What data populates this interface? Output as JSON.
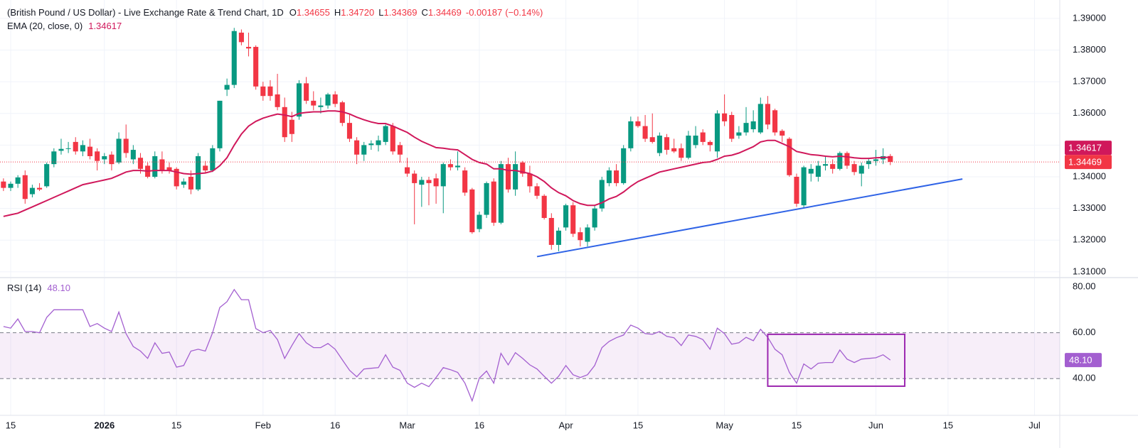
{
  "chart_data": {
    "type": "candlestick",
    "title": "(British Pound / US Dollar) - Live Exchange Rate & Trend Chart, 1D",
    "ohlc_legend": [
      {
        "label": "O",
        "value": "1.34655"
      },
      {
        "label": "H",
        "value": "1.34720"
      },
      {
        "label": "L",
        "value": "1.34369"
      },
      {
        "label": "C",
        "value": "1.34469"
      }
    ],
    "change": "-0.00187",
    "change_pct": "(−0.14%)",
    "up_color": "#089981",
    "down_color": "#f23645",
    "grid": true,
    "ylim": [
      1.3084,
      1.3958
    ],
    "yticks": [
      {
        "value": 1.39,
        "label": "1.39000"
      },
      {
        "value": 1.38,
        "label": "1.38000"
      },
      {
        "value": 1.37,
        "label": "1.37000"
      },
      {
        "value": 1.36,
        "label": "1.36000"
      },
      {
        "value": 1.35,
        "label": "1.35000"
      },
      {
        "value": 1.34,
        "label": "1.34000"
      },
      {
        "value": 1.33,
        "label": "1.33000"
      },
      {
        "value": 1.32,
        "label": "1.32000"
      },
      {
        "value": 1.31,
        "label": "1.31000"
      }
    ],
    "xlim": [
      -0.48,
      146.5
    ],
    "xticks": [
      {
        "value": 1,
        "label": "15"
      },
      {
        "value": 14,
        "label": "2026"
      },
      {
        "value": 24,
        "label": "15"
      },
      {
        "value": 36,
        "label": "Feb"
      },
      {
        "value": 46,
        "label": "16"
      },
      {
        "value": 56,
        "label": "Mar"
      },
      {
        "value": 66,
        "label": "16"
      },
      {
        "value": 78,
        "label": "Apr"
      },
      {
        "value": 88,
        "label": "15"
      },
      {
        "value": 100,
        "label": "May"
      },
      {
        "value": 110,
        "label": "15"
      },
      {
        "value": 121,
        "label": "Jun"
      },
      {
        "value": 131,
        "label": "15"
      },
      {
        "value": 143,
        "label": "Jul"
      }
    ],
    "ohlc": [
      [
        1.3385,
        1.3395,
        1.3355,
        1.3365
      ],
      [
        1.3365,
        1.3385,
        1.3355,
        1.3378
      ],
      [
        1.3378,
        1.3405,
        1.3365,
        1.3398
      ],
      [
        1.3405,
        1.342,
        1.3315,
        1.333
      ],
      [
        1.3345,
        1.3375,
        1.3335,
        1.3365
      ],
      [
        1.3365,
        1.338,
        1.3355,
        1.336
      ],
      [
        1.337,
        1.3445,
        1.3365,
        1.344
      ],
      [
        1.344,
        1.349,
        1.343,
        1.348
      ],
      [
        1.3482,
        1.352,
        1.347,
        1.3488
      ],
      [
        1.3488,
        1.351,
        1.3475,
        1.349
      ],
      [
        1.351,
        1.3525,
        1.347,
        1.348
      ],
      [
        1.348,
        1.3515,
        1.3465,
        1.35
      ],
      [
        1.3495,
        1.352,
        1.3455,
        1.3465
      ],
      [
        1.348,
        1.349,
        1.342,
        1.345
      ],
      [
        1.3455,
        1.3475,
        1.344,
        1.3465
      ],
      [
        1.347,
        1.348,
        1.342,
        1.344
      ],
      [
        1.3445,
        1.354,
        1.344,
        1.352
      ],
      [
        1.352,
        1.3565,
        1.346,
        1.3475
      ],
      [
        1.3455,
        1.35,
        1.344,
        1.3485
      ],
      [
        1.346,
        1.3475,
        1.341,
        1.3425
      ],
      [
        1.3435,
        1.3445,
        1.3395,
        1.34
      ],
      [
        1.34,
        1.348,
        1.3395,
        1.3465
      ],
      [
        1.3455,
        1.348,
        1.341,
        1.342
      ],
      [
        1.343,
        1.3445,
        1.341,
        1.342
      ],
      [
        1.3425,
        1.343,
        1.336,
        1.337
      ],
      [
        1.3375,
        1.3395,
        1.3365,
        1.3385
      ],
      [
        1.34,
        1.342,
        1.3345,
        1.336
      ],
      [
        1.336,
        1.3475,
        1.3355,
        1.3465
      ],
      [
        1.3435,
        1.345,
        1.341,
        1.342
      ],
      [
        1.342,
        1.35,
        1.3415,
        1.349
      ],
      [
        1.349,
        1.364,
        1.348,
        1.364
      ],
      [
        1.3675,
        1.371,
        1.3655,
        1.369
      ],
      [
        1.369,
        1.387,
        1.368,
        1.386
      ],
      [
        1.3855,
        1.3865,
        1.3815,
        1.3825
      ],
      [
        1.381,
        1.3855,
        1.378,
        1.3805
      ],
      [
        1.381,
        1.3815,
        1.3675,
        1.3685
      ],
      [
        1.3685,
        1.37,
        1.364,
        1.3655
      ],
      [
        1.3685,
        1.3705,
        1.364,
        1.3655
      ],
      [
        1.366,
        1.3725,
        1.361,
        1.362
      ],
      [
        1.362,
        1.365,
        1.351,
        1.3525
      ],
      [
        1.358,
        1.3605,
        1.351,
        1.3535
      ],
      [
        1.359,
        1.3705,
        1.358,
        1.3695
      ],
      [
        1.3695,
        1.3715,
        1.363,
        1.364
      ],
      [
        1.364,
        1.367,
        1.361,
        1.3625
      ],
      [
        1.362,
        1.365,
        1.36,
        1.3625
      ],
      [
        1.3625,
        1.3665,
        1.3615,
        1.366
      ],
      [
        1.366,
        1.367,
        1.362,
        1.363
      ],
      [
        1.3635,
        1.364,
        1.356,
        1.357
      ],
      [
        1.357,
        1.36,
        1.351,
        1.352
      ],
      [
        1.3515,
        1.3525,
        1.344,
        1.347
      ],
      [
        1.347,
        1.351,
        1.345,
        1.35
      ],
      [
        1.35,
        1.3515,
        1.3485,
        1.3505
      ],
      [
        1.35,
        1.353,
        1.348,
        1.3515
      ],
      [
        1.351,
        1.3565,
        1.35,
        1.356
      ],
      [
        1.356,
        1.357,
        1.347,
        1.348
      ],
      [
        1.35,
        1.351,
        1.3445,
        1.347
      ],
      [
        1.343,
        1.346,
        1.34,
        1.341
      ],
      [
        1.341,
        1.342,
        1.325,
        1.338
      ],
      [
        1.3375,
        1.34,
        1.3305,
        1.339
      ],
      [
        1.339,
        1.34,
        1.331,
        1.338
      ],
      [
        1.3395,
        1.341,
        1.3315,
        1.337
      ],
      [
        1.337,
        1.3445,
        1.3285,
        1.344
      ],
      [
        1.344,
        1.3455,
        1.342,
        1.343
      ],
      [
        1.343,
        1.348,
        1.342,
        1.3435
      ],
      [
        1.342,
        1.343,
        1.334,
        1.335
      ],
      [
        1.336,
        1.3365,
        1.322,
        1.3225
      ],
      [
        1.3235,
        1.329,
        1.3225,
        1.328
      ],
      [
        1.328,
        1.3385,
        1.327,
        1.338
      ],
      [
        1.3385,
        1.3395,
        1.3245,
        1.3255
      ],
      [
        1.3255,
        1.345,
        1.325,
        1.344
      ],
      [
        1.344,
        1.346,
        1.335,
        1.336
      ],
      [
        1.336,
        1.348,
        1.334,
        1.344
      ],
      [
        1.3445,
        1.345,
        1.34,
        1.341
      ],
      [
        1.341,
        1.3435,
        1.335,
        1.337
      ],
      [
        1.337,
        1.338,
        1.333,
        1.334
      ],
      [
        1.334,
        1.3345,
        1.3265,
        1.327
      ],
      [
        1.327,
        1.3285,
        1.317,
        1.3185
      ],
      [
        1.3185,
        1.324,
        1.3165,
        1.323
      ],
      [
        1.324,
        1.3315,
        1.323,
        1.331
      ],
      [
        1.331,
        1.332,
        1.321,
        1.322
      ],
      [
        1.3225,
        1.324,
        1.318,
        1.32
      ],
      [
        1.3195,
        1.325,
        1.318,
        1.324
      ],
      [
        1.324,
        1.331,
        1.323,
        1.33
      ],
      [
        1.33,
        1.34,
        1.329,
        1.339
      ],
      [
        1.338,
        1.343,
        1.337,
        1.342
      ],
      [
        1.342,
        1.344,
        1.337,
        1.338
      ],
      [
        1.338,
        1.35,
        1.3375,
        1.349
      ],
      [
        1.349,
        1.359,
        1.348,
        1.3575
      ],
      [
        1.3575,
        1.359,
        1.3555,
        1.356
      ],
      [
        1.356,
        1.3595,
        1.351,
        1.352
      ],
      [
        1.3525,
        1.36,
        1.3505,
        1.351
      ],
      [
        1.3475,
        1.354,
        1.3465,
        1.353
      ],
      [
        1.3525,
        1.3535,
        1.347,
        1.3485
      ],
      [
        1.349,
        1.352,
        1.3475,
        1.348
      ],
      [
        1.349,
        1.3505,
        1.345,
        1.346
      ],
      [
        1.346,
        1.3545,
        1.3455,
        1.353
      ],
      [
        1.35,
        1.356,
        1.349,
        1.353
      ],
      [
        1.354,
        1.355,
        1.35,
        1.351
      ],
      [
        1.351,
        1.3515,
        1.348,
        1.35
      ],
      [
        1.348,
        1.361,
        1.346,
        1.36
      ],
      [
        1.36,
        1.366,
        1.356,
        1.3575
      ],
      [
        1.3595,
        1.3605,
        1.351,
        1.352
      ],
      [
        1.353,
        1.356,
        1.352,
        1.354
      ],
      [
        1.354,
        1.362,
        1.353,
        1.357
      ],
      [
        1.355,
        1.361,
        1.354,
        1.3575
      ],
      [
        1.354,
        1.365,
        1.3535,
        1.363
      ],
      [
        1.363,
        1.3655,
        1.355,
        1.3565
      ],
      [
        1.361,
        1.3615,
        1.353,
        1.354
      ],
      [
        1.3545,
        1.355,
        1.351,
        1.353
      ],
      [
        1.352,
        1.3525,
        1.34,
        1.3405
      ],
      [
        1.34,
        1.341,
        1.3305,
        1.3315
      ],
      [
        1.331,
        1.3435,
        1.33,
        1.343
      ],
      [
        1.341,
        1.344,
        1.3385,
        1.3425
      ],
      [
        1.34,
        1.345,
        1.3385,
        1.3435
      ],
      [
        1.3435,
        1.3465,
        1.342,
        1.344
      ],
      [
        1.344,
        1.3455,
        1.341,
        1.3425
      ],
      [
        1.3425,
        1.348,
        1.342,
        1.3475
      ],
      [
        1.3475,
        1.348,
        1.3425,
        1.3435
      ],
      [
        1.344,
        1.345,
        1.3405,
        1.3415
      ],
      [
        1.341,
        1.3445,
        1.337,
        1.3435
      ],
      [
        1.344,
        1.346,
        1.3425,
        1.345
      ],
      [
        1.345,
        1.3485,
        1.3435,
        1.3455
      ],
      [
        1.3455,
        1.349,
        1.344,
        1.3465
      ],
      [
        1.34655,
        1.3472,
        1.34369,
        1.34469
      ]
    ],
    "ema": {
      "name": "EMA (20, close, 0)",
      "value_label": "1.34617",
      "color": "#d0185b",
      "values": [
        1.3275,
        1.328,
        1.3285,
        1.3295,
        1.3305,
        1.3315,
        1.3325,
        1.3335,
        1.3345,
        1.3355,
        1.3365,
        1.3375,
        1.338,
        1.3385,
        1.339,
        1.3395,
        1.3405,
        1.3415,
        1.342,
        1.342,
        1.3418,
        1.342,
        1.342,
        1.342,
        1.3415,
        1.341,
        1.3408,
        1.341,
        1.3412,
        1.3418,
        1.3435,
        1.346,
        1.35,
        1.3535,
        1.356,
        1.3575,
        1.3585,
        1.3592,
        1.3598,
        1.3595,
        1.359,
        1.36,
        1.3603,
        1.3605,
        1.3605,
        1.3608,
        1.3608,
        1.3605,
        1.3598,
        1.3588,
        1.358,
        1.3573,
        1.3568,
        1.3568,
        1.356,
        1.355,
        1.354,
        1.3525,
        1.3512,
        1.3502,
        1.3492,
        1.349,
        1.3487,
        1.3485,
        1.347,
        1.3455,
        1.3445,
        1.344,
        1.3425,
        1.3425,
        1.342,
        1.342,
        1.3415,
        1.341,
        1.34,
        1.3385,
        1.3365,
        1.335,
        1.334,
        1.3325,
        1.3315,
        1.331,
        1.331,
        1.3318,
        1.333,
        1.3338,
        1.3352,
        1.337,
        1.3385,
        1.3395,
        1.3405,
        1.3415,
        1.342,
        1.3425,
        1.343,
        1.3435,
        1.344,
        1.3445,
        1.3447,
        1.3455,
        1.3465,
        1.3468,
        1.3475,
        1.3485,
        1.3495,
        1.351,
        1.3515,
        1.3515,
        1.3505,
        1.3495,
        1.348,
        1.3475,
        1.347,
        1.3468,
        1.3465,
        1.3463,
        1.3465,
        1.3463,
        1.346,
        1.3458,
        1.3458,
        1.346,
        1.3461,
        1.34617
      ]
    },
    "trendline": {
      "color": "#2f63e6",
      "x": [
        74,
        133
      ],
      "values": [
        1.3148,
        1.3393
      ]
    },
    "rsi": {
      "name": "RSI (14)",
      "value_label": "48.10",
      "color": "#a35fd0",
      "ylim": [
        24,
        83.7
      ],
      "yticks": [
        {
          "value": 80,
          "label": "80.00"
        },
        {
          "value": 60,
          "label": "60.00"
        },
        {
          "value": 40,
          "label": "40.00"
        }
      ],
      "band": [
        40,
        60
      ],
      "highlight_box": {
        "color": "#9c27b0",
        "x": [
          106,
          125
        ],
        "values": [
          59.3,
          36.7
        ]
      },
      "values": [
        62.7,
        62,
        66,
        60.5,
        60.5,
        60,
        66.7,
        70,
        70,
        70,
        70,
        70,
        62.7,
        64,
        62,
        60.5,
        69,
        59.6,
        54,
        52,
        48.8,
        55.6,
        51,
        51.6,
        45,
        45.7,
        52,
        52.8,
        52,
        60,
        71,
        73.5,
        78.8,
        74.4,
        74.4,
        61.8,
        60,
        61,
        57,
        48.8,
        54.4,
        59.6,
        55.6,
        53.5,
        53.5,
        55.3,
        52.8,
        48.2,
        43.6,
        40.8,
        44.2,
        44.5,
        44.8,
        50.4,
        45,
        43.6,
        38,
        36.2,
        38,
        36.5,
        40.5,
        44.8,
        43.9,
        42.7,
        38,
        30.3,
        40.2,
        43.3,
        38,
        51,
        46,
        51.3,
        48.8,
        46,
        44.2,
        41,
        38,
        41,
        45.7,
        41.7,
        40.5,
        41.7,
        45.7,
        53.5,
        56.2,
        57.8,
        59,
        63.3,
        62,
        59.6,
        59.3,
        60.5,
        58.4,
        57.8,
        54.4,
        59,
        58.4,
        57,
        52.8,
        62,
        59.6,
        55,
        55.6,
        58,
        56.5,
        61.5,
        58,
        52.8,
        50.4,
        42.7,
        38,
        46.4,
        44.2,
        46.7,
        47,
        47,
        52.5,
        48.5,
        47,
        48.5,
        48.8,
        49.1,
        50.4,
        48.1
      ]
    }
  }
}
